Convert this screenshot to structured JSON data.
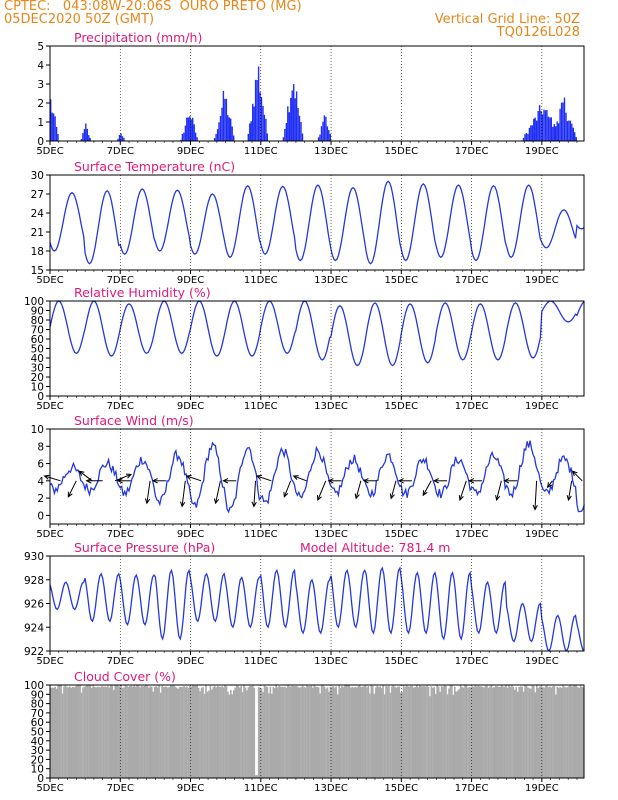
{
  "header": {
    "line1": "CPTEC:   043:08W-20:06S  OURO PRETO (MG)",
    "line2": "05DEC2020 50Z (GMT)",
    "right1": "Vertical Grid Line: 50Z",
    "right2": "TQ0126L028"
  },
  "colors": {
    "header": "#e8861a",
    "title": "#e0197a",
    "line": "#2438e0",
    "bar": "#1f2ef5",
    "cloud": "#aaaaaa",
    "arrow": "#000000"
  },
  "x_axis": {
    "tick_labels": [
      "5DEC",
      "7DEC",
      "9DEC",
      "11DEC",
      "13DEC",
      "15DEC",
      "17DEC",
      "19DEC"
    ],
    "tick_days": [
      0,
      2,
      4,
      6,
      8,
      10,
      12,
      14
    ],
    "xlim_days": [
      0,
      15.2
    ]
  },
  "chart_data": [
    {
      "id": "precip",
      "type": "bar",
      "title": "Precipitation (mm/h)",
      "extra": "",
      "ylim": [
        0,
        5
      ],
      "yticks": [
        0,
        1,
        2,
        3,
        4,
        5
      ],
      "x_unit": "days since 5DEC 00Z",
      "events": [
        {
          "day": 0.0,
          "peak": 2.6,
          "width": 0.25
        },
        {
          "day": 1.0,
          "peak": 1.0,
          "width": 0.15
        },
        {
          "day": 2.0,
          "peak": 0.6,
          "width": 0.12
        },
        {
          "day": 3.95,
          "peak": 2.0,
          "width": 0.25
        },
        {
          "day": 4.95,
          "peak": 3.0,
          "width": 0.3
        },
        {
          "day": 5.9,
          "peak": 4.8,
          "width": 0.3
        },
        {
          "day": 6.9,
          "peak": 4.3,
          "width": 0.3
        },
        {
          "day": 7.8,
          "peak": 1.8,
          "width": 0.2
        },
        {
          "day": 14.0,
          "peak": 2.2,
          "width": 0.6
        },
        {
          "day": 14.6,
          "peak": 2.6,
          "width": 0.4
        }
      ]
    },
    {
      "id": "temp",
      "type": "line",
      "title": "Surface Temperature (nC)",
      "extra": "",
      "ylim": [
        15,
        30
      ],
      "yticks": [
        15,
        18,
        21,
        24,
        27,
        30
      ],
      "x_unit": "days since 5DEC 00Z",
      "daily_max": [
        27.2,
        27.5,
        27.8,
        27.6,
        27.0,
        28.3,
        28.2,
        28.4,
        28.0,
        29.0,
        28.6,
        28.4,
        28.3,
        28.4,
        24.5,
        25.0
      ],
      "daily_min": [
        18.0,
        16.0,
        17.5,
        18.0,
        17.5,
        17.0,
        17.5,
        16.5,
        16.5,
        16.0,
        16.5,
        17.0,
        16.5,
        17.0,
        18.5,
        21.5
      ]
    },
    {
      "id": "rh",
      "type": "line",
      "title": "Relative Humidity (%)",
      "extra": "",
      "ylim": [
        0,
        100
      ],
      "yticks": [
        0,
        10,
        20,
        30,
        40,
        50,
        60,
        70,
        80,
        90,
        100
      ],
      "x_unit": "days since 5DEC 00Z",
      "daily_max": [
        100,
        100,
        97,
        100,
        100,
        100,
        100,
        100,
        95,
        98,
        97,
        98,
        97,
        98,
        100,
        100
      ],
      "daily_min": [
        45,
        42,
        45,
        45,
        42,
        42,
        45,
        38,
        32,
        32,
        35,
        38,
        38,
        40,
        78,
        70
      ]
    },
    {
      "id": "wind",
      "type": "line",
      "title": "Surface Wind (m/s)",
      "extra": "",
      "ylim": [
        -1,
        10
      ],
      "yticks": [
        0,
        2,
        4,
        6,
        8,
        10
      ],
      "x_unit": "days since 5DEC 00Z",
      "daily_max": [
        5.5,
        6.0,
        6.5,
        7.0,
        8.0,
        8.0,
        7.5,
        7.5,
        6.5,
        7.0,
        6.5,
        6.5,
        6.8,
        8.2,
        6.5,
        6.5
      ],
      "daily_min": [
        3.0,
        3.0,
        2.5,
        1.5,
        1.0,
        0.5,
        1.5,
        2.0,
        2.5,
        2.5,
        2.5,
        2.5,
        2.5,
        2.5,
        2.5,
        0.5
      ],
      "vectors": [
        {
          "day": 0.3,
          "u": -1.0,
          "v": 0.3
        },
        {
          "day": 0.75,
          "u": -0.5,
          "v": -1.0
        },
        {
          "day": 1.2,
          "u": -0.8,
          "v": 0.6
        },
        {
          "day": 1.5,
          "u": -1.0,
          "v": 0.0
        },
        {
          "day": 1.85,
          "u": 1.0,
          "v": 0.4
        },
        {
          "day": 2.3,
          "u": -0.8,
          "v": 0.0
        },
        {
          "day": 2.85,
          "u": -0.2,
          "v": -1.4
        },
        {
          "day": 3.3,
          "u": -0.8,
          "v": 0.0
        },
        {
          "day": 3.85,
          "u": -0.2,
          "v": -1.6
        },
        {
          "day": 4.3,
          "u": -0.9,
          "v": 0.3
        },
        {
          "day": 4.85,
          "u": -0.3,
          "v": -1.4
        },
        {
          "day": 5.3,
          "u": -0.8,
          "v": 0.0
        },
        {
          "day": 5.85,
          "u": -0.1,
          "v": -1.6
        },
        {
          "day": 6.3,
          "u": -0.9,
          "v": 0.3
        },
        {
          "day": 6.85,
          "u": -0.4,
          "v": -1.0
        },
        {
          "day": 7.3,
          "u": -0.8,
          "v": 0.3
        },
        {
          "day": 7.85,
          "u": -0.5,
          "v": -1.2
        },
        {
          "day": 8.3,
          "u": -0.8,
          "v": 0.0
        },
        {
          "day": 8.85,
          "u": -0.3,
          "v": -1.1
        },
        {
          "day": 9.3,
          "u": -0.8,
          "v": 0.0
        },
        {
          "day": 9.85,
          "u": -0.3,
          "v": -1.1
        },
        {
          "day": 10.3,
          "u": -0.8,
          "v": 0.0
        },
        {
          "day": 10.85,
          "u": -0.5,
          "v": -0.9
        },
        {
          "day": 11.3,
          "u": -0.8,
          "v": 0.0
        },
        {
          "day": 11.85,
          "u": -0.4,
          "v": -1.2
        },
        {
          "day": 12.3,
          "u": -0.8,
          "v": 0.0
        },
        {
          "day": 12.85,
          "u": -0.3,
          "v": -1.2
        },
        {
          "day": 13.3,
          "u": -0.8,
          "v": 0.0
        },
        {
          "day": 13.85,
          "u": -0.1,
          "v": -1.8
        },
        {
          "day": 14.3,
          "u": -0.3,
          "v": -0.4
        },
        {
          "day": 14.85,
          "u": -0.2,
          "v": -1.2
        },
        {
          "day": 15.15,
          "u": -0.6,
          "v": 0.6
        }
      ]
    },
    {
      "id": "pres",
      "type": "line",
      "title": "Surface Pressure (hPa)",
      "extra": "Model Altitude: 781.4 m",
      "ylim": [
        922,
        930
      ],
      "yticks": [
        922,
        924,
        926,
        928,
        930
      ],
      "x_unit": "days since 5DEC 00Z",
      "semidiurnal_max": [
        927.8,
        928.5,
        928.4,
        928.8,
        928.5,
        928.2,
        928.8,
        928.0,
        928.8,
        929.0,
        928.6,
        928.6,
        927.8,
        926.0,
        925.0,
        924.5
      ],
      "semidiurnal_min": [
        925.5,
        924.5,
        924.2,
        923.0,
        924.5,
        924.0,
        924.0,
        923.5,
        924.0,
        923.5,
        923.5,
        923.0,
        923.5,
        922.8,
        922.0,
        922.0
      ]
    },
    {
      "id": "cloud",
      "type": "area",
      "title": "Cloud Cover (%)",
      "extra": "",
      "ylim": [
        0,
        100
      ],
      "yticks": [
        0,
        10,
        20,
        30,
        40,
        50,
        60,
        70,
        80,
        90,
        100
      ],
      "x_unit": "days since 5DEC 00Z",
      "typical_value": 97,
      "dips": [
        {
          "day": 5.85,
          "value": 3
        },
        {
          "day": 4.5,
          "value": 94
        },
        {
          "day": 9.5,
          "value": 90
        },
        {
          "day": 10.8,
          "value": 88
        },
        {
          "day": 11.3,
          "value": 90
        }
      ]
    }
  ]
}
